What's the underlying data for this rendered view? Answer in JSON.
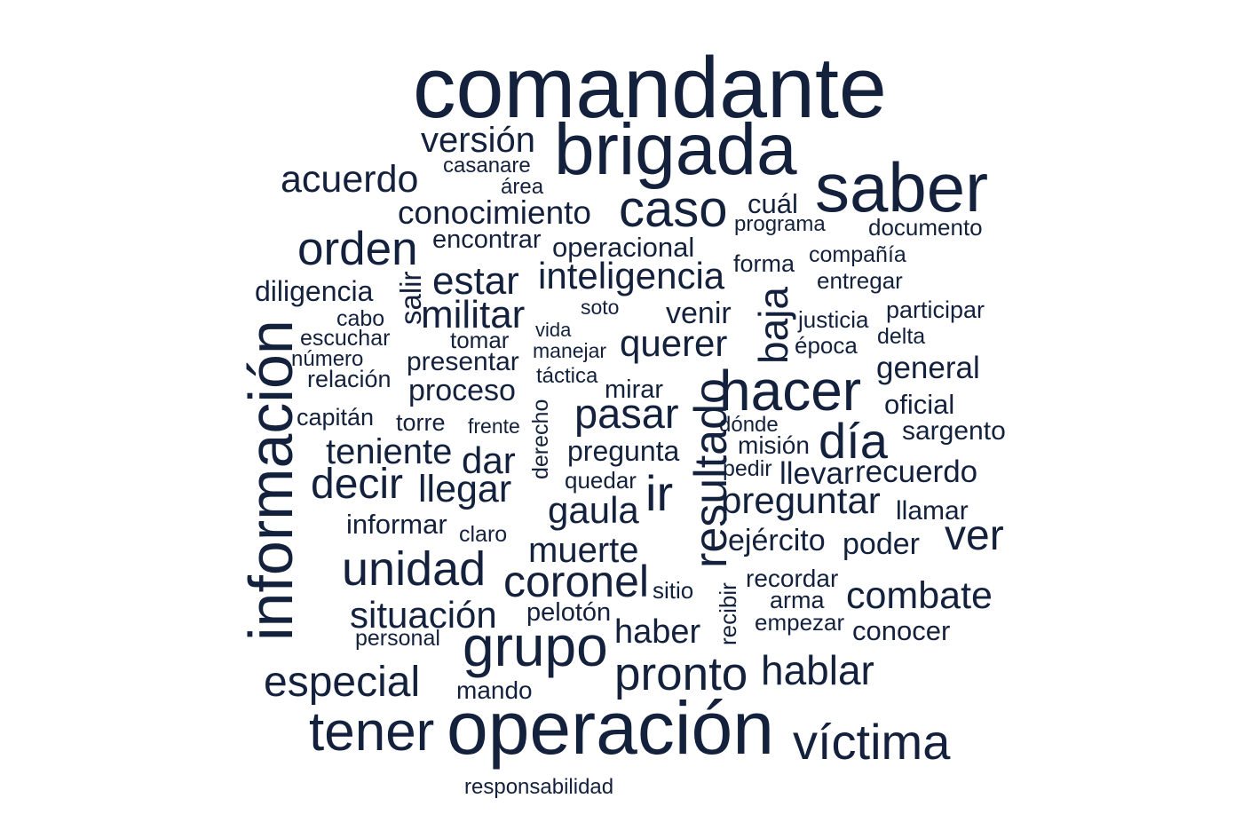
{
  "color": "#14213d",
  "background": "#ffffff",
  "words": {
    "comandante": "comandante",
    "brigada": "brigada",
    "saber": "saber",
    "version": "versión",
    "casanare": "casanare",
    "area": "área",
    "acuerdo": "acuerdo",
    "conocimiento": "conocimiento",
    "caso": "caso",
    "cual": "cuál",
    "programa": "programa",
    "documento": "documento",
    "orden": "orden",
    "encontrar": "encontrar",
    "operacional": "operacional",
    "forma": "forma",
    "compania": "compañía",
    "entregar": "entregar",
    "diligencia": "diligencia",
    "salir": "salir",
    "estar": "estar",
    "inteligencia": "inteligencia",
    "baja": "baja",
    "militar": "militar",
    "soto": "soto",
    "venir": "venir",
    "justicia": "justicia",
    "participar": "participar",
    "cabo": "cabo",
    "vida": "vida",
    "escuchar": "escuchar",
    "tomar": "tomar",
    "querer": "querer",
    "epoca": "época",
    "delta": "delta",
    "informacion": "información",
    "numero": "número",
    "presentar": "presentar",
    "manejar": "manejar",
    "general": "general",
    "relacion": "relación",
    "tactica": "táctica",
    "hacer": "hacer",
    "proceso": "proceso",
    "mirar": "mirar",
    "resultado": "resultado",
    "oficial": "oficial",
    "capitan": "capitán",
    "torre": "torre",
    "frente": "frente",
    "derecho": "derecho",
    "pasar": "pasar",
    "donde": "dónde",
    "dia": "día",
    "sargento": "sargento",
    "teniente": "teniente",
    "pregunta": "pregunta",
    "mision": "misión",
    "dar": "dar",
    "pedir": "pedir",
    "llevar": "llevar",
    "recuerdo": "recuerdo",
    "decir": "decir",
    "llegar": "llegar",
    "quedar": "quedar",
    "ir": "ir",
    "preguntar": "preguntar",
    "gaula": "gaula",
    "llamar": "llamar",
    "informar": "informar",
    "claro": "claro",
    "ver": "ver",
    "ejercito": "ejército",
    "poder": "poder",
    "muerte": "muerte",
    "unidad": "unidad",
    "coronel": "coronel",
    "sitio": "sitio",
    "recordar": "recordar",
    "recibir": "recibir",
    "arma": "arma",
    "combate": "combate",
    "situacion": "situación",
    "peloton": "pelotón",
    "empezar": "empezar",
    "personal": "personal",
    "grupo": "grupo",
    "haber": "haber",
    "conocer": "conocer",
    "hablar": "hablar",
    "pronto": "pronto",
    "especial": "especial",
    "mando": "mando",
    "tener": "tener",
    "operacion": "operación",
    "victima": "víctima",
    "responsabilidad": "responsabilidad"
  }
}
